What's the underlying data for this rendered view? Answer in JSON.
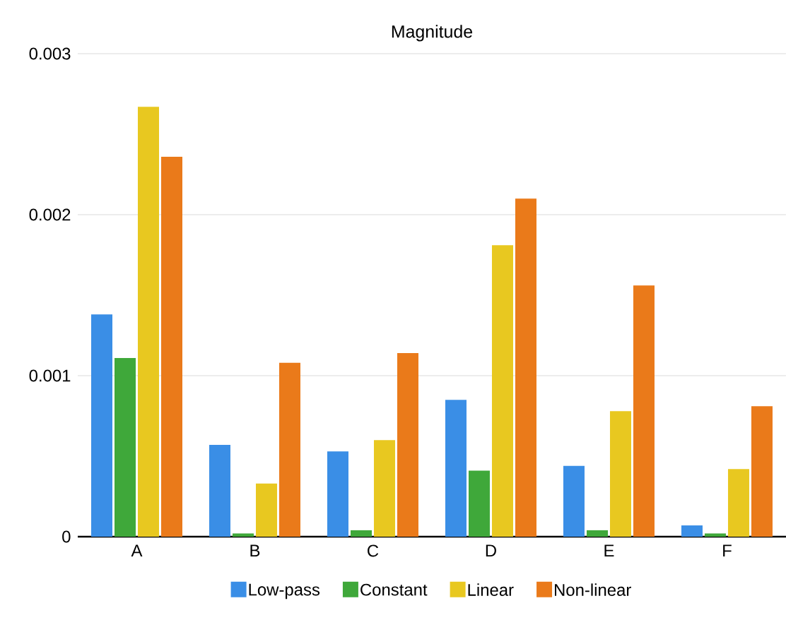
{
  "chart_data": {
    "type": "bar",
    "title": "Magnitude",
    "categories": [
      "A",
      "B",
      "C",
      "D",
      "E",
      "F"
    ],
    "series": [
      {
        "name": "Low-pass",
        "color": "#3a8ee6",
        "values": [
          0.00138,
          0.00057,
          0.00053,
          0.00085,
          0.00044,
          7e-05
        ]
      },
      {
        "name": "Constant",
        "color": "#3fa83a",
        "values": [
          0.00111,
          2e-05,
          4e-05,
          0.00041,
          4e-05,
          2e-05
        ]
      },
      {
        "name": "Linear",
        "color": "#e8c820",
        "values": [
          0.00267,
          0.00033,
          0.0006,
          0.00181,
          0.00078,
          0.00042
        ]
      },
      {
        "name": "Non-linear",
        "color": "#ea7a1a",
        "values": [
          0.00236,
          0.00108,
          0.00114,
          0.0021,
          0.00156,
          0.00081
        ]
      }
    ],
    "ylim": [
      0,
      0.003
    ],
    "yticks": [
      0,
      0.001,
      0.002,
      0.003
    ],
    "grid": "y",
    "legend": "bottom"
  }
}
